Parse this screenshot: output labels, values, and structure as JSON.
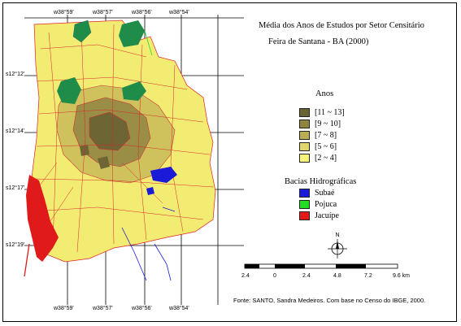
{
  "title": "Média dos Anos de Estudos por Setor Censitário",
  "subtitle": "Feira de Santana - BA (2000)",
  "coords": {
    "top": [
      "w38°59'",
      "w38°57'",
      "w38°56'",
      "w38°54'"
    ],
    "bottom": [
      "w38°59'",
      "w38°57'",
      "w38°56'",
      "w38°54'"
    ],
    "left": [
      "s12°12'",
      "s12°14'",
      "s12°17'",
      "s12°19'"
    ]
  },
  "legend_anos": {
    "title": "Anos",
    "items": [
      {
        "label": "[11 ~ 13]",
        "color": "#6b6233"
      },
      {
        "label": "[9 ~ 10]",
        "color": "#8f8440"
      },
      {
        "label": "[7 ~ 8]",
        "color": "#b9ad55"
      },
      {
        "label": "[5 ~ 6]",
        "color": "#e0d66e"
      },
      {
        "label": "[2 ~ 4]",
        "color": "#f8f47a"
      }
    ]
  },
  "legend_bacias": {
    "title": "Bacias Hidrográficas",
    "items": [
      {
        "label": "Subaé",
        "color": "#1a1ad8"
      },
      {
        "label": "Pojuca",
        "color": "#22dd22"
      },
      {
        "label": "Jacuípe",
        "color": "#e41a1a"
      }
    ]
  },
  "compass": {
    "label": "N"
  },
  "scale": {
    "labels": [
      "2.4",
      "0",
      "2.4",
      "4.8",
      "7.2",
      "9.6 km"
    ]
  },
  "source": "Fonte: SANTO, Sandra Medeiros. Com base no Censo do IBGE, 2000."
}
